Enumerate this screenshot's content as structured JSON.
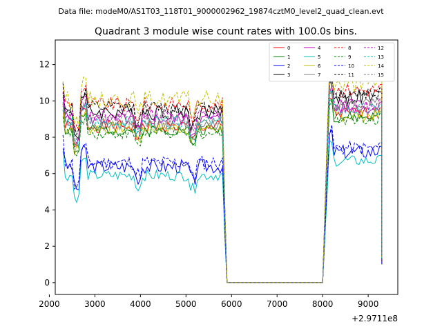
{
  "chart_data": {
    "type": "line",
    "suptitle": "Data file: modeM0/AS1T03_118T01_9000002962_19874cztM0_level2_quad_clean.evt",
    "title": "Quadrant 3 module wise count rates with 100.0s bins.",
    "xlabel": "",
    "ylabel": "",
    "x_offset_label": "+2.9711e8",
    "xlim": [
      2130,
      9650
    ],
    "ylim": [
      -0.65,
      13.35
    ],
    "xticks": [
      2000,
      3000,
      4000,
      5000,
      6000,
      7000,
      8000,
      9000
    ],
    "xtick_labels": [
      "2000",
      "3000",
      "4000",
      "5000",
      "6000",
      "7000",
      "8000",
      "9000"
    ],
    "yticks": [
      0,
      2,
      4,
      6,
      8,
      10,
      12
    ],
    "ytick_labels": [
      "0",
      "2",
      "4",
      "6",
      "8",
      "10",
      "12"
    ],
    "legend_location": "top-right",
    "x_segments": [
      [
        2300,
        5900
      ],
      [
        8000,
        9300
      ]
    ],
    "gap_value": 0,
    "series": [
      {
        "name": "0",
        "color": "#ff0000",
        "dash": "solid",
        "level": 8.6,
        "noise": 0.35,
        "after": 9.3,
        "seed": 1
      },
      {
        "name": "1",
        "color": "#008000",
        "dash": "solid",
        "level": 8.4,
        "noise": 0.3,
        "after": 9.1,
        "seed": 2
      },
      {
        "name": "2",
        "color": "#0000ff",
        "dash": "solid",
        "level": 6.4,
        "noise": 0.4,
        "after": 7.2,
        "seed": 3
      },
      {
        "name": "3",
        "color": "#000000",
        "dash": "solid",
        "level": 9.4,
        "noise": 0.45,
        "after": 10.2,
        "seed": 4
      },
      {
        "name": "4",
        "color": "#bf00bf",
        "dash": "solid",
        "level": 9.0,
        "noise": 0.35,
        "after": 9.6,
        "seed": 5
      },
      {
        "name": "5",
        "color": "#00bfbf",
        "dash": "solid",
        "level": 5.9,
        "noise": 0.3,
        "after": 6.7,
        "seed": 6
      },
      {
        "name": "6",
        "color": "#bfbf00",
        "dash": "solid",
        "level": 8.5,
        "noise": 0.35,
        "after": 9.2,
        "seed": 7
      },
      {
        "name": "7",
        "color": "#808080",
        "dash": "solid",
        "level": 8.7,
        "noise": 0.35,
        "after": 9.8,
        "seed": 8
      },
      {
        "name": "8",
        "color": "#ff0000",
        "dash": "dashed",
        "level": 9.8,
        "noise": 0.4,
        "after": 10.6,
        "seed": 9
      },
      {
        "name": "9",
        "color": "#008000",
        "dash": "dashed",
        "level": 8.2,
        "noise": 0.3,
        "after": 9.0,
        "seed": 10
      },
      {
        "name": "10",
        "color": "#0000ff",
        "dash": "dashed",
        "level": 6.6,
        "noise": 0.4,
        "after": 7.4,
        "seed": 11
      },
      {
        "name": "11",
        "color": "#000000",
        "dash": "dashed",
        "level": 9.6,
        "noise": 0.4,
        "after": 10.4,
        "seed": 12
      },
      {
        "name": "12",
        "color": "#bf00bf",
        "dash": "dashed",
        "level": 9.2,
        "noise": 0.35,
        "after": 9.8,
        "seed": 13
      },
      {
        "name": "13",
        "color": "#00bfbf",
        "dash": "dashed",
        "level": 8.8,
        "noise": 0.35,
        "after": 9.5,
        "seed": 14
      },
      {
        "name": "14",
        "color": "#bfbf00",
        "dash": "dashed",
        "level": 10.1,
        "noise": 0.45,
        "after": 10.9,
        "seed": 15
      },
      {
        "name": "15",
        "color": "#808080",
        "dash": "dashed",
        "level": 9.0,
        "noise": 0.35,
        "after": 9.7,
        "seed": 16
      }
    ]
  }
}
